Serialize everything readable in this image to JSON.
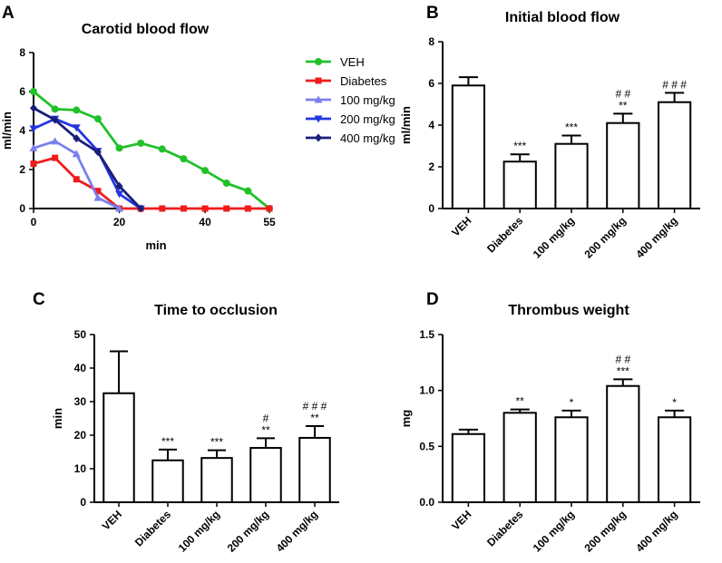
{
  "chart_data": [
    {
      "panel": "A",
      "type": "line",
      "title": "Carotid blood flow",
      "xlabel": "min",
      "ylabel": "ml/min",
      "xlim": [
        0,
        55
      ],
      "ylim": [
        0,
        8
      ],
      "xticks": [
        0,
        20,
        40,
        55
      ],
      "yticks": [
        0,
        2,
        4,
        6,
        8
      ],
      "series": [
        {
          "name": "VEH",
          "color": "#22c02a",
          "marker": "circle",
          "x": [
            0,
            5,
            10,
            15,
            20,
            25,
            30,
            35,
            40,
            45,
            50,
            55
          ],
          "y": [
            6.0,
            5.1,
            5.05,
            4.6,
            3.1,
            3.35,
            3.05,
            2.55,
            1.95,
            1.3,
            0.9,
            0.0
          ]
        },
        {
          "name": "Diabetes",
          "color": "#ee1c1c",
          "marker": "square",
          "x": [
            0,
            5,
            10,
            15,
            20,
            25,
            30,
            35,
            40,
            45,
            50,
            55
          ],
          "y": [
            2.3,
            2.6,
            1.5,
            0.9,
            0.0,
            0.0,
            0.0,
            0.0,
            0.0,
            0.0,
            0.0,
            0.0
          ]
        },
        {
          "name": "100 mg/kg",
          "color": "#7b80ee",
          "marker": "triangle-up",
          "x": [
            0,
            5,
            10,
            15,
            20
          ],
          "y": [
            3.1,
            3.45,
            2.8,
            0.55,
            0.0
          ]
        },
        {
          "name": "200 mg/kg",
          "color": "#2436e0",
          "marker": "triangle-down",
          "x": [
            0,
            5,
            10,
            15,
            20,
            25
          ],
          "y": [
            4.1,
            4.6,
            4.15,
            2.95,
            0.75,
            0.0
          ]
        },
        {
          "name": "400 mg/kg",
          "color": "#1a1f78",
          "marker": "diamond",
          "x": [
            0,
            5,
            10,
            15,
            20,
            25
          ],
          "y": [
            5.15,
            4.55,
            3.6,
            2.9,
            1.15,
            0.0
          ]
        }
      ]
    },
    {
      "panel": "B",
      "type": "bar",
      "title": "Initial blood flow",
      "ylabel": "ml/min",
      "ylim": [
        0,
        8
      ],
      "yticks": [
        0,
        2,
        4,
        6,
        8
      ],
      "categories": [
        "VEH",
        "Diabetes",
        "100 mg/kg",
        "200 mg/kg",
        "400 mg/kg"
      ],
      "values": [
        5.9,
        2.25,
        3.1,
        4.1,
        5.1
      ],
      "errors": [
        0.4,
        0.35,
        0.4,
        0.45,
        0.45
      ],
      "annotations": [
        [
          "",
          ""
        ],
        [
          "",
          "***"
        ],
        [
          "",
          "***"
        ],
        [
          "# #",
          "**"
        ],
        [
          "# # #",
          ""
        ]
      ]
    },
    {
      "panel": "C",
      "type": "bar",
      "title": "Time to occlusion",
      "ylabel": "min",
      "ylim": [
        0,
        50
      ],
      "yticks": [
        0,
        10,
        20,
        30,
        40,
        50
      ],
      "categories": [
        "VEH",
        "Diabetes",
        "100 mg/kg",
        "200 mg/kg",
        "400 mg/kg"
      ],
      "values": [
        32.5,
        12.5,
        13.2,
        16.2,
        19.2
      ],
      "errors": [
        12.5,
        3.2,
        2.3,
        2.9,
        3.5
      ],
      "annotations": [
        [
          "",
          ""
        ],
        [
          "",
          "***"
        ],
        [
          "",
          "***"
        ],
        [
          "#",
          "**"
        ],
        [
          "# # #",
          "**"
        ]
      ]
    },
    {
      "panel": "D",
      "type": "bar",
      "title": "Thrombus weight",
      "ylabel": "mg",
      "ylim": [
        0,
        1.5
      ],
      "yticks": [
        0.0,
        0.5,
        1.0,
        1.5
      ],
      "ytick_labels": [
        "0.0",
        "0.5",
        "1.0",
        "1.5"
      ],
      "categories": [
        "VEH",
        "Diabetes",
        "100 mg/kg",
        "200 mg/kg",
        "400 mg/kg"
      ],
      "values": [
        0.61,
        0.8,
        0.76,
        1.04,
        0.76
      ],
      "errors": [
        0.04,
        0.03,
        0.06,
        0.06,
        0.06
      ],
      "annotations": [
        [
          "",
          ""
        ],
        [
          "",
          "**"
        ],
        [
          "",
          "*"
        ],
        [
          "# #",
          "***"
        ],
        [
          "",
          "*"
        ]
      ]
    }
  ]
}
